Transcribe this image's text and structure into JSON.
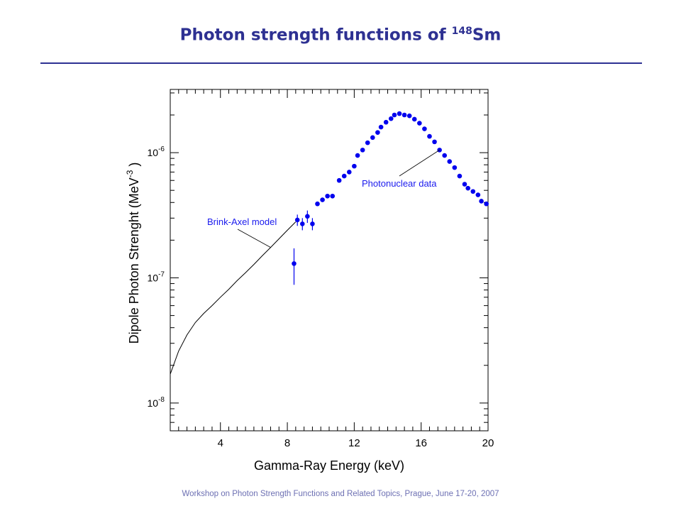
{
  "slide": {
    "title": "Photon strength functions of",
    "title_sup": "148",
    "title_element": "Sm",
    "footer": "Workshop on Photon Strength Functions and Related Topics, Prague, June 17-20, 2007"
  },
  "colors": {
    "title": "#2e3192",
    "marker": "#0000ee",
    "annotation": "#1a1aee",
    "axis": "#000000",
    "footer": "#6d70b3"
  },
  "chart_data": {
    "type": "scatter",
    "title": "",
    "xlabel": "Gamma-Ray Energy (keV)",
    "ylabel_main": "Dipole Photon Strenght (MeV",
    "ylabel_exp": "-3",
    "ylabel_close": ")",
    "x_scale": "linear",
    "y_scale": "log",
    "xlim": [
      1,
      20
    ],
    "ylim": [
      6e-09,
      3.2e-06
    ],
    "x_ticks": [
      4,
      8,
      12,
      16,
      20
    ],
    "x_tick_labels": [
      "4",
      "8",
      "12",
      "16",
      "20"
    ],
    "y_ticks": [
      1e-08,
      1e-07,
      1e-06
    ],
    "y_tick_labels": [
      {
        "base": "10",
        "exp": "-8"
      },
      {
        "base": "10",
        "exp": "-7"
      },
      {
        "base": "10",
        "exp": "-6"
      }
    ],
    "grid": false,
    "series": [
      {
        "kind": "line",
        "x": [
          1.0,
          1.5,
          2.0,
          2.5,
          3.0,
          3.5,
          4.0,
          4.5,
          5.0,
          5.5,
          6.0,
          6.5,
          7.0,
          7.5,
          8.0,
          8.5
        ],
        "y": [
          1.7e-08,
          2.6e-08,
          3.5e-08,
          4.4e-08,
          5.2e-08,
          6e-08,
          7e-08,
          8.1e-08,
          9.5e-08,
          1.1e-07,
          1.28e-07,
          1.5e-07,
          1.75e-07,
          2.05e-07,
          2.4e-07,
          2.8e-07
        ]
      },
      {
        "kind": "points",
        "x": [
          8.4,
          8.6,
          8.9,
          9.2,
          9.5
        ],
        "y": [
          1.3e-07,
          2.9e-07,
          2.7e-07,
          3.1e-07,
          2.7e-07
        ],
        "y_err": [
          4.2e-08,
          3e-08,
          3e-08,
          3.5e-08,
          3e-08
        ]
      },
      {
        "kind": "points",
        "x": [
          9.8,
          10.1,
          10.4,
          10.7,
          11.1,
          11.4,
          11.7,
          12.0,
          12.2,
          12.5,
          12.8,
          13.1,
          13.4,
          13.6,
          13.9,
          14.2,
          14.4,
          14.7,
          15.0,
          15.3,
          15.6,
          15.9,
          16.2,
          16.5,
          16.8,
          17.1,
          17.4,
          17.7,
          18.0,
          18.3,
          18.6,
          18.8,
          19.1,
          19.4,
          19.6,
          19.9
        ],
        "y": [
          3.9e-07,
          4.2e-07,
          4.5e-07,
          4.5e-07,
          6e-07,
          6.5e-07,
          7e-07,
          7.8e-07,
          9.5e-07,
          1.05e-06,
          1.2e-06,
          1.32e-06,
          1.45e-06,
          1.6e-06,
          1.75e-06,
          1.87e-06,
          2e-06,
          2.05e-06,
          2e-06,
          1.97e-06,
          1.85e-06,
          1.72e-06,
          1.55e-06,
          1.35e-06,
          1.22e-06,
          1.05e-06,
          9.5e-07,
          8.5e-07,
          7.6e-07,
          6.5e-07,
          5.6e-07,
          5.2e-07,
          4.9e-07,
          4.6e-07,
          4.1e-07,
          3.9e-07
        ]
      }
    ],
    "annotations": [
      {
        "text": "Brink-Axel model",
        "arrow_to": [
          7.0,
          1.75e-07
        ]
      },
      {
        "text": "Photonuclear data",
        "arrow_to": [
          17.1,
          1.05e-06
        ]
      }
    ]
  }
}
